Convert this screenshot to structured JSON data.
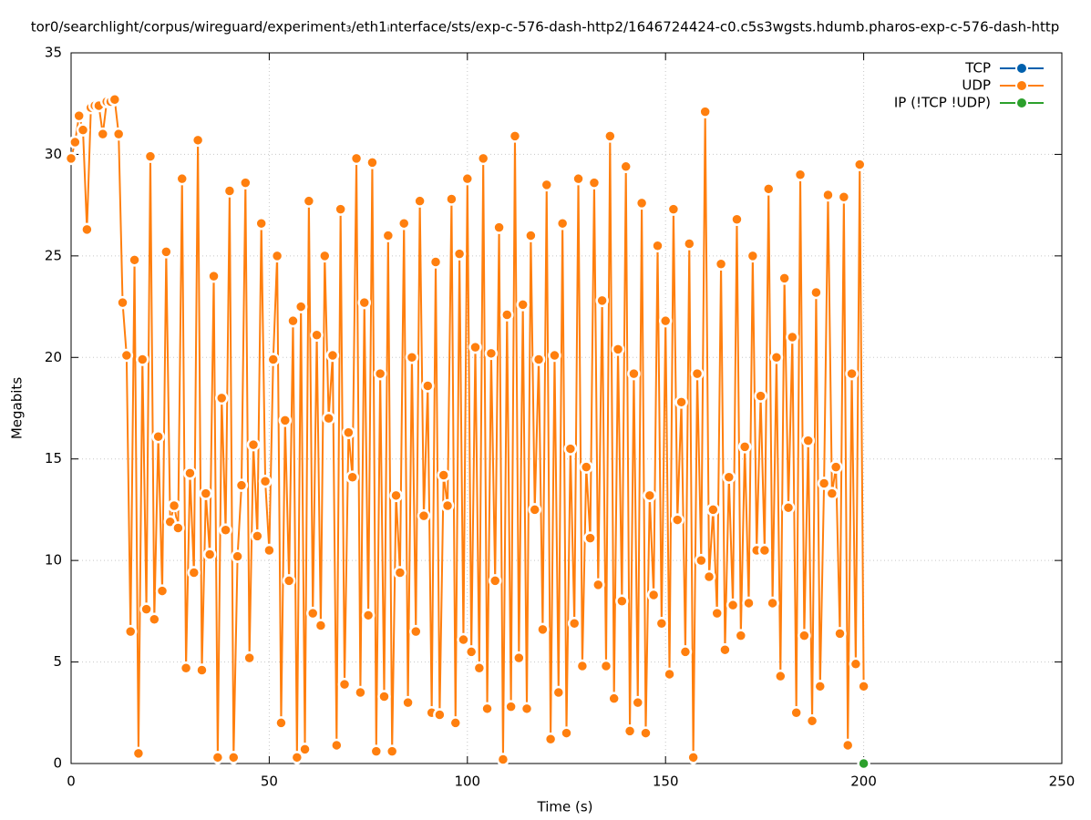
{
  "chart_data": {
    "type": "line",
    "title": "tor0/searchlight/corpus/wireguard/experiment₃/eth1ᵢnterface/sts/exp-c-576-dash-http2/1646724424-c0.c5s3wgsts.hdumb.pharos-exp-c-576-dash-http",
    "xlabel": "Time (s)",
    "ylabel": "Megabits",
    "xlim": [
      0,
      250
    ],
    "xticks": [
      0,
      50,
      100,
      150,
      200,
      250
    ],
    "ylim": [
      0,
      35
    ],
    "yticks": [
      0,
      5,
      10,
      15,
      20,
      25,
      30,
      35
    ],
    "grid": true,
    "legend": "top-right",
    "series": [
      {
        "name": "TCP",
        "color": "#0060ad",
        "x": [],
        "values": []
      },
      {
        "name": "UDP",
        "color": "#ff7f0e",
        "x": [
          0,
          1,
          2,
          3,
          4,
          5,
          6,
          7,
          8,
          9,
          10,
          11,
          12,
          13,
          14,
          15,
          16,
          17,
          18,
          19,
          20,
          21,
          22,
          23,
          24,
          25,
          26,
          27,
          28,
          29,
          30,
          31,
          32,
          33,
          34,
          35,
          36,
          37,
          38,
          39,
          40,
          41,
          42,
          43,
          44,
          45,
          46,
          47,
          48,
          49,
          50,
          51,
          52,
          53,
          54,
          55,
          56,
          57,
          58,
          59,
          60,
          61,
          62,
          63,
          64,
          65,
          66,
          67,
          68,
          69,
          70,
          71,
          72,
          73,
          74,
          75,
          76,
          77,
          78,
          79,
          80,
          81,
          82,
          83,
          84,
          85,
          86,
          87,
          88,
          89,
          90,
          91,
          92,
          93,
          94,
          95,
          96,
          97,
          98,
          99,
          100,
          101,
          102,
          103,
          104,
          105,
          106,
          107,
          108,
          109,
          110,
          111,
          112,
          113,
          114,
          115,
          116,
          117,
          118,
          119,
          120,
          121,
          122,
          123,
          124,
          125,
          126,
          127,
          128,
          129,
          130,
          131,
          132,
          133,
          134,
          135,
          136,
          137,
          138,
          139,
          140,
          141,
          142,
          143,
          144,
          145,
          146,
          147,
          148,
          149,
          150,
          151,
          152,
          153,
          154,
          155,
          156,
          157,
          158,
          159,
          160,
          161,
          162,
          163,
          164,
          165,
          166,
          167,
          168,
          169,
          170,
          171,
          172,
          173,
          174,
          175,
          176,
          177,
          178,
          179,
          180,
          181,
          182,
          183,
          184,
          185,
          186,
          187,
          188,
          189,
          190,
          191,
          192,
          193,
          194,
          195,
          196,
          197,
          198,
          199,
          200
        ],
        "values": [
          29.8,
          30.6,
          31.9,
          31.2,
          26.3,
          32.3,
          32.4,
          32.4,
          31.0,
          32.6,
          32.6,
          32.7,
          31.0,
          22.7,
          20.1,
          6.5,
          24.8,
          0.5,
          19.9,
          7.6,
          29.9,
          7.1,
          16.1,
          8.5,
          25.2,
          11.9,
          12.7,
          11.6,
          28.8,
          4.7,
          14.3,
          9.4,
          30.7,
          4.6,
          13.3,
          10.3,
          24.0,
          0.3,
          18.0,
          11.5,
          28.2,
          0.3,
          10.2,
          13.7,
          28.6,
          5.2,
          15.7,
          11.2,
          26.6,
          13.9,
          10.5,
          19.9,
          25.0,
          2.0,
          16.9,
          9.0,
          21.8,
          0.3,
          22.5,
          0.7,
          27.7,
          7.4,
          21.1,
          6.8,
          25.0,
          17.0,
          20.1,
          0.9,
          27.3,
          3.9,
          16.3,
          14.1,
          29.8,
          3.5,
          22.7,
          7.3,
          29.6,
          0.6,
          19.2,
          3.3,
          26.0,
          0.6,
          13.2,
          9.4,
          26.6,
          3.0,
          20.0,
          6.5,
          27.7,
          12.2,
          18.6,
          2.5,
          24.7,
          2.4,
          14.2,
          12.7,
          27.8,
          2.0,
          25.1,
          6.1,
          28.8,
          5.5,
          20.5,
          4.7,
          29.8,
          2.7,
          20.2,
          9.0,
          26.4,
          0.2,
          22.1,
          2.8,
          30.9,
          5.2,
          22.6,
          2.7,
          26.0,
          12.5,
          19.9,
          6.6,
          28.5,
          1.2,
          20.1,
          3.5,
          26.6,
          1.5,
          15.5,
          6.9,
          28.8,
          4.8,
          14.6,
          11.1,
          28.6,
          8.8,
          22.8,
          4.8,
          30.9,
          3.2,
          20.4,
          8.0,
          29.4,
          1.6,
          19.2,
          3.0,
          27.6,
          1.5,
          13.2,
          8.3,
          25.5,
          6.9,
          21.8,
          4.4,
          27.3,
          12.0,
          17.8,
          5.5,
          25.6,
          0.3,
          19.2,
          10.0,
          32.1,
          9.2,
          12.5,
          7.4,
          24.6,
          5.6,
          14.1,
          7.8,
          26.8,
          6.3,
          15.6,
          7.9,
          25.0,
          10.5,
          18.1,
          10.5,
          28.3,
          7.9,
          20.0,
          4.3,
          23.9,
          12.6,
          21.0,
          2.5,
          29.0,
          6.3,
          15.9,
          2.1,
          23.2,
          3.8,
          13.8,
          28.0,
          13.3,
          14.6,
          6.4,
          27.9,
          0.9,
          19.2,
          4.9,
          29.5,
          3.8
        ]
      },
      {
        "name": "IP (!TCP  !UDP)",
        "color": "#2ca02c",
        "x": [
          200
        ],
        "values": [
          0
        ]
      }
    ]
  }
}
